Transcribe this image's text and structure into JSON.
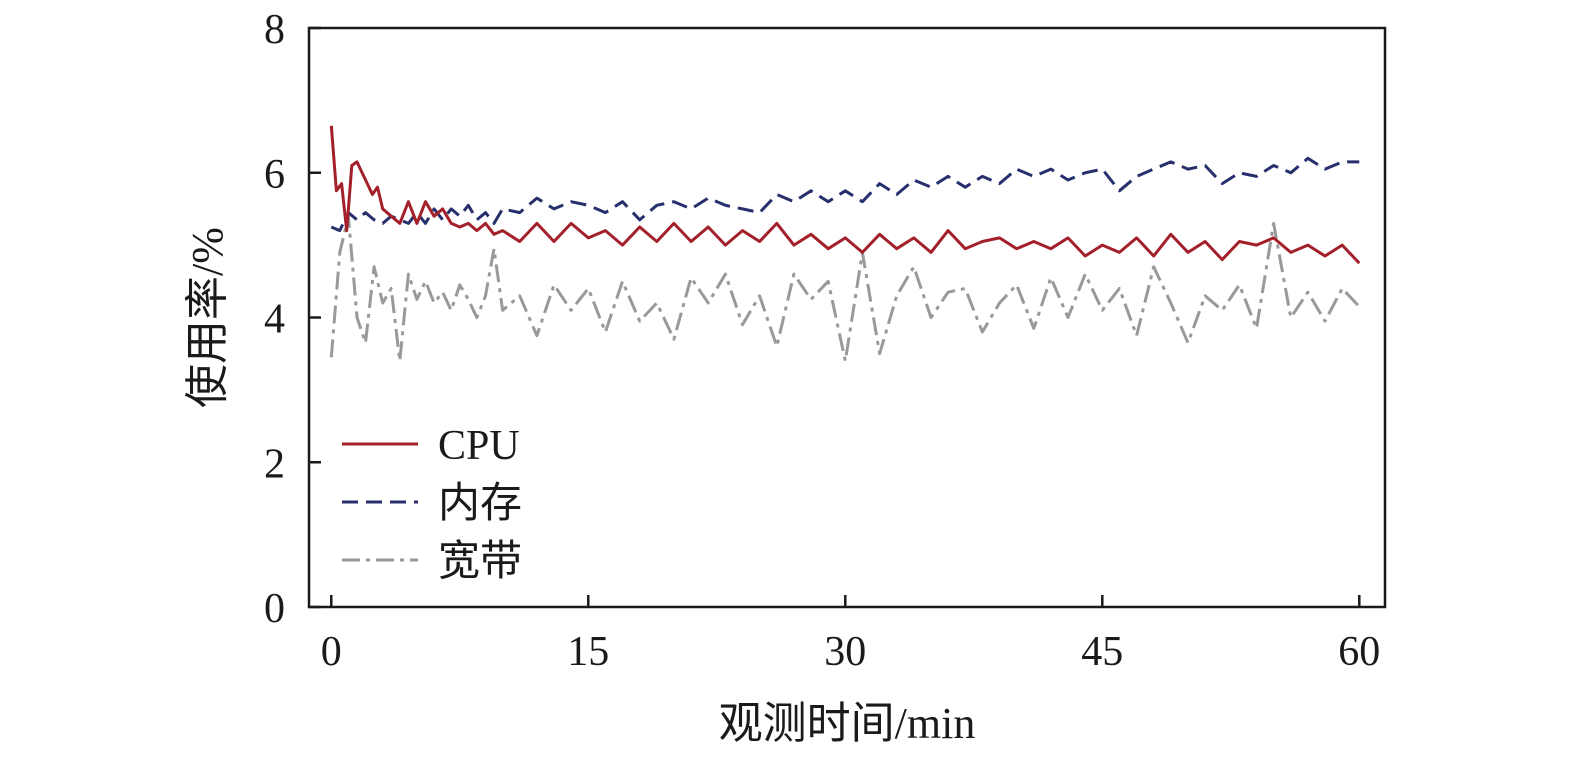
{
  "chart_data": {
    "type": "line",
    "title": "",
    "xlabel": "观测时间/min",
    "ylabel": "使用率/%",
    "xlim": [
      -1.3,
      61.5
    ],
    "ylim": [
      0,
      8
    ],
    "xticks": [
      0,
      15,
      30,
      45,
      60
    ],
    "yticks": [
      0,
      2,
      4,
      6,
      8
    ],
    "xtick_labels": [
      "0",
      "15",
      "30",
      "45",
      "60"
    ],
    "ytick_labels": [
      "0",
      "2",
      "4",
      "6",
      "8"
    ],
    "grid": false,
    "legend_position": "bottom-left",
    "series": [
      {
        "name": "CPU",
        "color": "#a3202b",
        "dash": "solid",
        "x": [
          0,
          0.3,
          0.6,
          0.9,
          1.2,
          1.5,
          1.8,
          2.1,
          2.4,
          2.7,
          3,
          3.5,
          4,
          4.5,
          5,
          5.5,
          6,
          6.5,
          7,
          7.5,
          8,
          8.5,
          9,
          9.5,
          10,
          11,
          12,
          13,
          14,
          15,
          16,
          17,
          18,
          19,
          20,
          21,
          22,
          23,
          24,
          25,
          26,
          27,
          28,
          29,
          30,
          31,
          32,
          33,
          34,
          35,
          36,
          37,
          38,
          39,
          40,
          41,
          42,
          43,
          44,
          45,
          46,
          47,
          48,
          49,
          50,
          51,
          52,
          53,
          54,
          55,
          56,
          57,
          58,
          59,
          60
        ],
        "y": [
          6.65,
          5.75,
          5.85,
          5.2,
          6.1,
          6.15,
          6.0,
          5.85,
          5.7,
          5.8,
          5.5,
          5.4,
          5.3,
          5.6,
          5.3,
          5.6,
          5.4,
          5.5,
          5.3,
          5.25,
          5.3,
          5.2,
          5.3,
          5.15,
          5.2,
          5.05,
          5.3,
          5.05,
          5.3,
          5.1,
          5.2,
          5.0,
          5.25,
          5.05,
          5.3,
          5.05,
          5.25,
          5.0,
          5.2,
          5.05,
          5.3,
          5.0,
          5.15,
          4.95,
          5.1,
          4.9,
          5.15,
          4.95,
          5.1,
          4.9,
          5.2,
          4.95,
          5.05,
          5.1,
          4.95,
          5.05,
          4.95,
          5.1,
          4.85,
          5.0,
          4.9,
          5.1,
          4.85,
          5.15,
          4.9,
          5.05,
          4.8,
          5.05,
          5.0,
          5.1,
          4.9,
          5.0,
          4.85,
          5.0,
          4.75
        ]
      },
      {
        "name": "内存",
        "color": "#27306d",
        "dash": "16 8",
        "x": [
          0,
          0.5,
          1,
          1.5,
          2,
          2.5,
          3,
          3.5,
          4,
          4.5,
          5,
          5.5,
          6,
          6.5,
          7,
          7.5,
          8,
          8.5,
          9,
          9.5,
          10,
          11,
          12,
          13,
          14,
          15,
          16,
          17,
          18,
          19,
          20,
          21,
          22,
          23,
          24,
          25,
          26,
          27,
          28,
          29,
          30,
          31,
          32,
          33,
          34,
          35,
          36,
          37,
          38,
          39,
          40,
          41,
          42,
          43,
          44,
          45,
          46,
          47,
          48,
          49,
          50,
          51,
          52,
          53,
          54,
          55,
          56,
          57,
          58,
          59,
          60
        ],
        "y": [
          5.25,
          5.2,
          5.45,
          5.35,
          5.45,
          5.35,
          5.3,
          5.4,
          5.35,
          5.3,
          5.45,
          5.3,
          5.5,
          5.35,
          5.5,
          5.4,
          5.55,
          5.35,
          5.45,
          5.3,
          5.5,
          5.45,
          5.65,
          5.5,
          5.6,
          5.55,
          5.45,
          5.6,
          5.35,
          5.55,
          5.6,
          5.5,
          5.65,
          5.55,
          5.5,
          5.45,
          5.7,
          5.6,
          5.75,
          5.6,
          5.75,
          5.6,
          5.85,
          5.7,
          5.9,
          5.8,
          5.95,
          5.8,
          5.95,
          5.85,
          6.05,
          5.95,
          6.05,
          5.9,
          6.0,
          6.05,
          5.75,
          5.95,
          6.05,
          6.15,
          6.05,
          6.1,
          5.85,
          6.0,
          5.95,
          6.1,
          6.0,
          6.2,
          6.05,
          6.15,
          6.15
        ]
      },
      {
        "name": "宽带",
        "color": "#999999",
        "dash": "18 6 4 6",
        "x": [
          0,
          0.5,
          1,
          1.5,
          2,
          2.5,
          3,
          3.5,
          4,
          4.5,
          5,
          5.5,
          6,
          6.5,
          7,
          7.5,
          8,
          8.5,
          9,
          9.5,
          10,
          11,
          12,
          13,
          14,
          15,
          16,
          17,
          18,
          19,
          20,
          21,
          22,
          23,
          24,
          25,
          26,
          27,
          28,
          29,
          30,
          31,
          32,
          33,
          34,
          35,
          36,
          37,
          38,
          39,
          40,
          41,
          42,
          43,
          44,
          45,
          46,
          47,
          48,
          49,
          50,
          51,
          52,
          53,
          54,
          55,
          56,
          57,
          58,
          59,
          60
        ],
        "y": [
          3.45,
          4.9,
          5.4,
          4.0,
          3.65,
          4.7,
          4.2,
          4.4,
          3.4,
          4.6,
          4.25,
          4.5,
          4.2,
          4.35,
          4.1,
          4.45,
          4.25,
          4.0,
          4.3,
          4.95,
          4.1,
          4.3,
          3.75,
          4.45,
          4.1,
          4.4,
          3.8,
          4.5,
          3.95,
          4.2,
          3.7,
          4.55,
          4.2,
          4.6,
          3.9,
          4.3,
          3.6,
          4.6,
          4.25,
          4.5,
          3.4,
          4.9,
          3.5,
          4.3,
          4.7,
          4.0,
          4.35,
          4.4,
          3.8,
          4.2,
          4.45,
          3.85,
          4.55,
          4.0,
          4.6,
          4.1,
          4.4,
          3.75,
          4.7,
          4.2,
          3.65,
          4.3,
          4.1,
          4.45,
          3.85,
          5.3,
          4.0,
          4.35,
          3.95,
          4.4,
          4.15
        ]
      }
    ]
  }
}
